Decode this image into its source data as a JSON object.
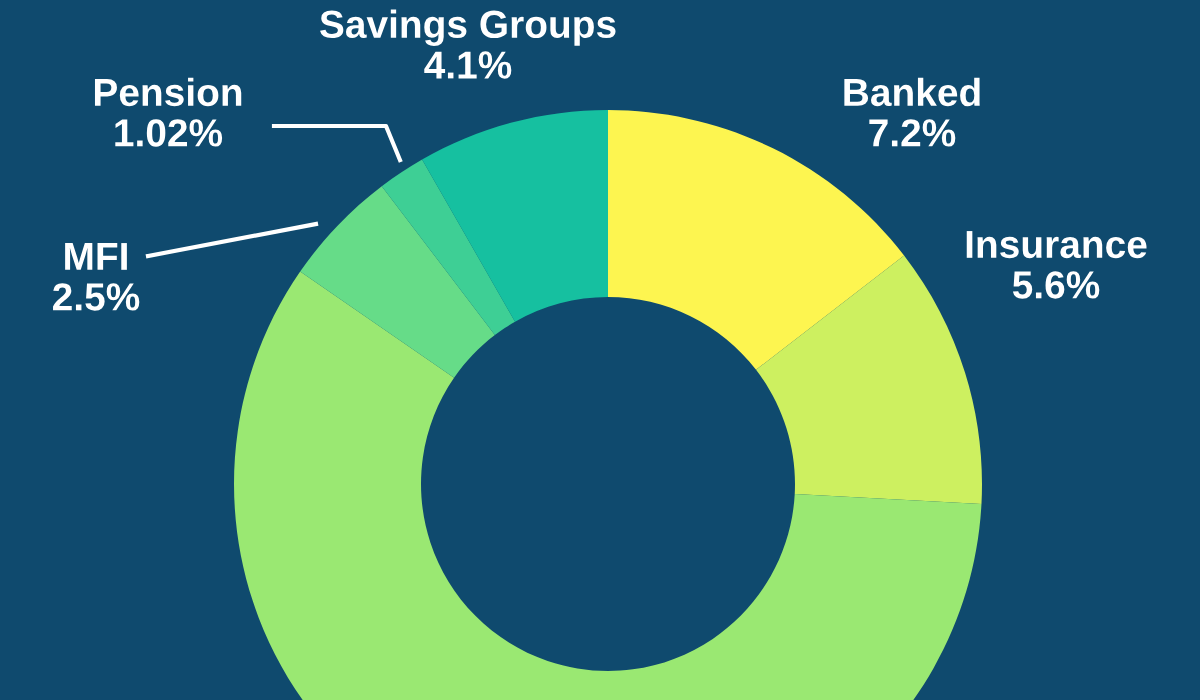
{
  "chart_data": {
    "type": "donut",
    "categories": [
      "Banked",
      "Insurance",
      null,
      "MFI",
      "Pension",
      "Savings Groups"
    ],
    "values": [
      7.2,
      5.6,
      29.1,
      2.5,
      1.02,
      4.1
    ],
    "value_labels": [
      "7.2%",
      "5.6%",
      null,
      "2.5%",
      "1.02%",
      "4.1%"
    ],
    "colors": [
      "#fdf550",
      "#cdf060",
      "#9ae872",
      "#66dc88",
      "#3ecf95",
      "#16c0a0"
    ],
    "legend": false
  }
}
